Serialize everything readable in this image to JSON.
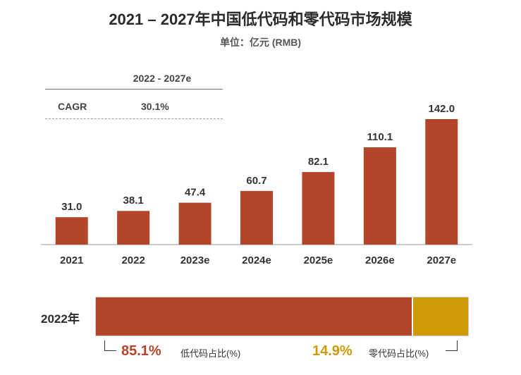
{
  "chart_data": {
    "type": "bar",
    "title": "2021 – 2027年中国低代码和零代码市场规模",
    "subtitle": "单位：亿元 (RMB)",
    "categories": [
      "2021",
      "2022",
      "2023e",
      "2024e",
      "2025e",
      "2026e",
      "2027e"
    ],
    "values": [
      31.0,
      38.1,
      47.4,
      60.7,
      82.1,
      110.1,
      142.0
    ],
    "value_labels": [
      "31.0",
      "38.1",
      "47.4",
      "60.7",
      "82.1",
      "110.1",
      "142.0"
    ],
    "ylim": [
      0,
      142.0
    ],
    "xlabel": "",
    "ylabel": "",
    "bar_color": "#b5452a",
    "cagr": {
      "period": "2022 - 2027e",
      "label": "CAGR",
      "value": "30.1%"
    },
    "share_2022": {
      "year_label": "2022年",
      "segments": [
        {
          "name": "低代码占比(%)",
          "value": 85.1,
          "label": "85.1%",
          "color": "#b5452a"
        },
        {
          "name": "零代码占比(%)",
          "value": 14.9,
          "label": "14.9%",
          "color": "#cf9a07"
        }
      ]
    }
  }
}
